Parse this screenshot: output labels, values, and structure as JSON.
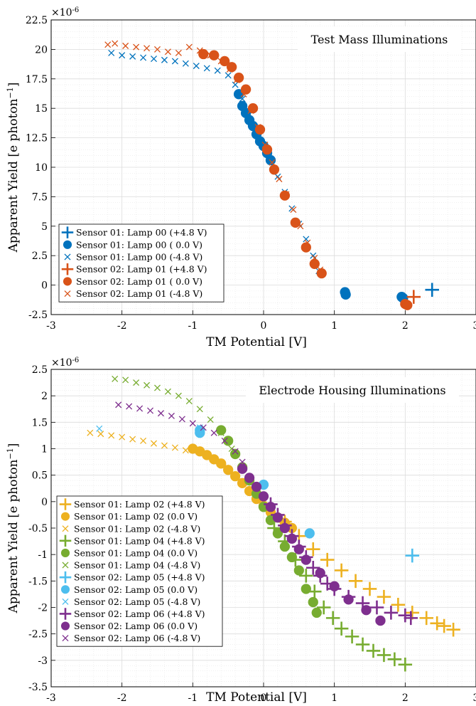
{
  "chart_data": [
    {
      "type": "scatter",
      "title": "Test Mass Illuminations",
      "xlabel": "TM Potential [V]",
      "ylabel": "Apparent Yield [e photon",
      "ylabel_sup": "−1",
      "ylabel_close": "]",
      "exponent_label": "×10",
      "exponent_sup": "-6",
      "xlim": [
        -3,
        3
      ],
      "ylim": [
        -2.5,
        22.5
      ],
      "xticks": [
        -3,
        -2,
        -1,
        0,
        1,
        2,
        3
      ],
      "xtick_labels": [
        "-3",
        "-2",
        "-1",
        "0",
        "1",
        "2",
        "3"
      ],
      "yticks": [
        -2.5,
        0,
        2.5,
        5,
        7.5,
        10,
        12.5,
        15,
        17.5,
        20,
        22.5
      ],
      "ytick_labels": [
        "-2.5",
        "0",
        "2.5",
        "5",
        "7.5",
        "10",
        "12.5",
        "15",
        "17.5",
        "20",
        "22.5"
      ],
      "grid": true,
      "legend_position": "bottom-left",
      "series": [
        {
          "name": "Sensor 01: Lamp 00 (+4.8 V)",
          "marker": "plus",
          "color": "#0072BD",
          "points": [
            [
              2.38,
              -0.4
            ]
          ]
        },
        {
          "name": "Sensor 01: Lamp 00 ( 0.0 V)",
          "marker": "circle",
          "color": "#0072BD",
          "points": [
            [
              -0.35,
              16.2
            ],
            [
              -0.3,
              15.2
            ],
            [
              -0.25,
              14.6
            ],
            [
              -0.2,
              14.0
            ],
            [
              -0.15,
              13.5
            ],
            [
              -0.1,
              12.8
            ],
            [
              -0.05,
              12.2
            ],
            [
              0.0,
              11.8
            ],
            [
              0.05,
              11.2
            ],
            [
              0.1,
              10.6
            ],
            [
              1.15,
              -0.6
            ],
            [
              1.16,
              -0.8
            ],
            [
              1.95,
              -1.0
            ],
            [
              1.97,
              -1.1
            ]
          ]
        },
        {
          "name": "Sensor 01: Lamp 00 (-4.8 V)",
          "marker": "x",
          "color": "#0072BD",
          "points": [
            [
              -2.15,
              19.7
            ],
            [
              -2.0,
              19.5
            ],
            [
              -1.85,
              19.4
            ],
            [
              -1.7,
              19.3
            ],
            [
              -1.55,
              19.2
            ],
            [
              -1.4,
              19.1
            ],
            [
              -1.25,
              19.0
            ],
            [
              -1.1,
              18.8
            ],
            [
              -0.95,
              18.6
            ],
            [
              -0.8,
              18.4
            ],
            [
              -0.65,
              18.2
            ],
            [
              -0.5,
              17.8
            ],
            [
              -0.4,
              17.0
            ],
            [
              -0.3,
              15.8
            ],
            [
              -0.2,
              14.5
            ],
            [
              -0.1,
              13.2
            ],
            [
              0.0,
              11.8
            ],
            [
              0.1,
              10.5
            ],
            [
              0.2,
              9.2
            ],
            [
              0.3,
              7.9
            ],
            [
              0.4,
              6.5
            ],
            [
              0.5,
              5.2
            ],
            [
              0.6,
              3.9
            ],
            [
              0.7,
              2.5
            ],
            [
              0.78,
              1.2
            ]
          ]
        },
        {
          "name": "Sensor 02: Lamp 01 (+4.8 V)",
          "marker": "plus",
          "color": "#D95319",
          "points": [
            [
              2.12,
              -1.0
            ]
          ]
        },
        {
          "name": "Sensor 02: Lamp 01 ( 0.0 V)",
          "marker": "circle",
          "color": "#D95319",
          "points": [
            [
              -0.85,
              19.6
            ],
            [
              -0.7,
              19.5
            ],
            [
              -0.55,
              19.0
            ],
            [
              -0.45,
              18.5
            ],
            [
              -0.35,
              17.6
            ],
            [
              -0.25,
              16.6
            ],
            [
              -0.15,
              15.0
            ],
            [
              -0.05,
              13.2
            ],
            [
              0.05,
              11.5
            ],
            [
              0.15,
              9.8
            ],
            [
              0.3,
              7.6
            ],
            [
              0.45,
              5.3
            ],
            [
              0.6,
              3.2
            ],
            [
              0.72,
              1.8
            ],
            [
              0.82,
              1.0
            ],
            [
              2.0,
              -1.6
            ],
            [
              2.03,
              -1.7
            ]
          ]
        },
        {
          "name": "Sensor 02: Lamp 01 (-4.8 V)",
          "marker": "x",
          "color": "#D95319",
          "points": [
            [
              -2.2,
              20.4
            ],
            [
              -2.1,
              20.5
            ],
            [
              -1.95,
              20.3
            ],
            [
              -1.8,
              20.2
            ],
            [
              -1.65,
              20.1
            ],
            [
              -1.5,
              20.0
            ],
            [
              -1.35,
              19.8
            ],
            [
              -1.2,
              19.7
            ],
            [
              -1.05,
              20.2
            ],
            [
              -0.9,
              19.9
            ],
            [
              -0.75,
              19.5
            ],
            [
              -0.6,
              19.0
            ],
            [
              -0.48,
              18.3
            ],
            [
              -0.38,
              17.4
            ],
            [
              -0.28,
              16.2
            ],
            [
              -0.18,
              14.8
            ],
            [
              -0.08,
              13.4
            ],
            [
              0.02,
              11.9
            ],
            [
              0.12,
              10.4
            ],
            [
              0.22,
              9.0
            ],
            [
              0.32,
              7.7
            ],
            [
              0.42,
              6.4
            ],
            [
              0.52,
              5.0
            ],
            [
              0.62,
              3.6
            ],
            [
              0.72,
              2.3
            ],
            [
              0.8,
              1.3
            ]
          ]
        }
      ]
    },
    {
      "type": "scatter",
      "title": "Electrode Housing Illuminations",
      "xlabel": "TM Potential [V]",
      "ylabel": "Apparent Yield [e photon",
      "ylabel_sup": "−1",
      "ylabel_close": "]",
      "exponent_label": "×10",
      "exponent_sup": "-6",
      "xlim": [
        -3,
        3
      ],
      "ylim": [
        -3.5,
        2.5
      ],
      "xticks": [
        -3,
        -2,
        -1,
        0,
        1,
        2,
        3
      ],
      "xtick_labels": [
        "-3",
        "-2",
        "-1",
        "0",
        "1",
        "2",
        "3"
      ],
      "yticks": [
        -3.5,
        -3,
        -2.5,
        -2,
        -1.5,
        -1,
        -0.5,
        0,
        0.5,
        1,
        1.5,
        2,
        2.5
      ],
      "ytick_labels": [
        "-3.5",
        "-3",
        "-2.5",
        "-2",
        "-1.5",
        "-1",
        "-0.5",
        "0",
        "0.5",
        "1",
        "1.5",
        "2",
        "2.5"
      ],
      "grid": true,
      "legend_position": "bottom-left",
      "series": [
        {
          "name": "Sensor 01: Lamp 02 (+4.8 V)",
          "marker": "plus",
          "color": "#EDB120",
          "points": [
            [
              0.3,
              -0.38
            ],
            [
              0.5,
              -0.65
            ],
            [
              0.7,
              -0.9
            ],
            [
              0.9,
              -1.1
            ],
            [
              1.1,
              -1.3
            ],
            [
              1.3,
              -1.5
            ],
            [
              1.5,
              -1.65
            ],
            [
              1.7,
              -1.8
            ],
            [
              1.9,
              -1.95
            ],
            [
              2.1,
              -2.1
            ],
            [
              2.3,
              -2.2
            ],
            [
              2.45,
              -2.3
            ],
            [
              2.55,
              -2.35
            ],
            [
              2.68,
              -2.42
            ]
          ]
        },
        {
          "name": "Sensor 01: Lamp 02 (0.0 V)",
          "marker": "circle",
          "color": "#EDB120",
          "points": [
            [
              -1.0,
              1.0
            ],
            [
              -0.9,
              0.95
            ],
            [
              -0.8,
              0.88
            ],
            [
              -0.7,
              0.8
            ],
            [
              -0.6,
              0.72
            ],
            [
              -0.5,
              0.6
            ],
            [
              -0.4,
              0.48
            ],
            [
              -0.3,
              0.35
            ],
            [
              -0.2,
              0.2
            ],
            [
              -0.1,
              0.05
            ],
            [
              0.0,
              -0.08
            ],
            [
              0.1,
              -0.2
            ],
            [
              0.2,
              -0.3
            ],
            [
              0.3,
              -0.4
            ],
            [
              0.4,
              -0.5
            ]
          ]
        },
        {
          "name": "Sensor 01: Lamp 02 (-4.8 V)",
          "marker": "x",
          "color": "#EDB120",
          "points": [
            [
              -2.45,
              1.3
            ],
            [
              -2.3,
              1.28
            ],
            [
              -2.15,
              1.25
            ],
            [
              -2.0,
              1.22
            ],
            [
              -1.85,
              1.18
            ],
            [
              -1.7,
              1.15
            ],
            [
              -1.55,
              1.1
            ],
            [
              -1.4,
              1.06
            ],
            [
              -1.25,
              1.02
            ],
            [
              -1.1,
              0.97
            ]
          ]
        },
        {
          "name": "Sensor 01: Lamp 04 (+4.8 V)",
          "marker": "plus",
          "color": "#77AC30",
          "points": [
            [
              0.15,
              -0.5
            ],
            [
              0.3,
              -0.75
            ],
            [
              0.45,
              -1.1
            ],
            [
              0.6,
              -1.4
            ],
            [
              0.72,
              -1.7
            ],
            [
              0.85,
              -2.0
            ],
            [
              0.98,
              -2.2
            ],
            [
              1.1,
              -2.4
            ],
            [
              1.25,
              -2.55
            ],
            [
              1.4,
              -2.7
            ],
            [
              1.55,
              -2.82
            ],
            [
              1.7,
              -2.9
            ],
            [
              1.85,
              -2.98
            ],
            [
              2.0,
              -3.08
            ]
          ]
        },
        {
          "name": "Sensor 01: Lamp 04 (0.0 V)",
          "marker": "circle",
          "color": "#77AC30",
          "points": [
            [
              -0.6,
              1.35
            ],
            [
              -0.5,
              1.15
            ],
            [
              -0.4,
              0.9
            ],
            [
              -0.3,
              0.65
            ],
            [
              -0.2,
              0.4
            ],
            [
              -0.1,
              0.15
            ],
            [
              0.0,
              -0.1
            ],
            [
              0.1,
              -0.35
            ],
            [
              0.2,
              -0.6
            ],
            [
              0.3,
              -0.85
            ],
            [
              0.4,
              -1.05
            ],
            [
              0.5,
              -1.3
            ],
            [
              0.6,
              -1.65
            ],
            [
              0.7,
              -1.9
            ],
            [
              0.75,
              -2.1
            ]
          ]
        },
        {
          "name": "Sensor 01: Lamp 04 (-4.8 V)",
          "marker": "x",
          "color": "#77AC30",
          "points": [
            [
              -2.1,
              2.32
            ],
            [
              -1.95,
              2.3
            ],
            [
              -1.8,
              2.25
            ],
            [
              -1.65,
              2.2
            ],
            [
              -1.5,
              2.15
            ],
            [
              -1.35,
              2.08
            ],
            [
              -1.2,
              2.0
            ],
            [
              -1.05,
              1.9
            ],
            [
              -0.9,
              1.75
            ],
            [
              -0.75,
              1.55
            ],
            [
              -0.6,
              1.3
            ],
            [
              -0.45,
              1.0
            ],
            [
              -0.3,
              0.65
            ]
          ]
        },
        {
          "name": "Sensor 02: Lamp 05 (+4.8 V)",
          "marker": "plus",
          "color": "#4DBEEE",
          "points": [
            [
              2.1,
              -1.02
            ]
          ]
        },
        {
          "name": "Sensor 02: Lamp 05 (0.0 V)",
          "marker": "circle",
          "color": "#4DBEEE",
          "points": [
            [
              -0.9,
              1.35
            ],
            [
              -0.9,
              1.3
            ],
            [
              0.0,
              0.32
            ],
            [
              0.65,
              -0.6
            ]
          ]
        },
        {
          "name": "Sensor 02: Lamp 05 (-4.8 V)",
          "marker": "x",
          "color": "#4DBEEE",
          "points": [
            [
              -2.32,
              1.38
            ],
            [
              -0.9,
              1.4
            ]
          ]
        },
        {
          "name": "Sensor 02: Lamp 06 (+4.8 V)",
          "marker": "plus",
          "color": "#7E2F8E",
          "points": [
            [
              0.1,
              -0.05
            ],
            [
              0.2,
              -0.25
            ],
            [
              0.3,
              -0.45
            ],
            [
              0.4,
              -0.65
            ],
            [
              0.5,
              -0.85
            ],
            [
              0.6,
              -1.05
            ],
            [
              0.7,
              -1.25
            ],
            [
              0.8,
              -1.4
            ],
            [
              0.9,
              -1.55
            ],
            [
              1.0,
              -1.65
            ],
            [
              1.2,
              -1.8
            ],
            [
              1.4,
              -1.92
            ],
            [
              1.6,
              -2.0
            ],
            [
              1.8,
              -2.1
            ],
            [
              2.0,
              -2.15
            ],
            [
              2.08,
              -2.2
            ]
          ]
        },
        {
          "name": "Sensor 02: Lamp 06 (0.0 V)",
          "marker": "circle",
          "color": "#7E2F8E",
          "points": [
            [
              -0.3,
              0.62
            ],
            [
              -0.2,
              0.45
            ],
            [
              -0.1,
              0.28
            ],
            [
              0.0,
              0.1
            ],
            [
              0.1,
              -0.1
            ],
            [
              0.2,
              -0.3
            ],
            [
              0.3,
              -0.5
            ],
            [
              0.4,
              -0.7
            ],
            [
              0.5,
              -0.9
            ],
            [
              0.6,
              -1.1
            ],
            [
              0.8,
              -1.35
            ],
            [
              1.0,
              -1.6
            ],
            [
              1.2,
              -1.85
            ],
            [
              1.45,
              -2.05
            ],
            [
              1.65,
              -2.25
            ]
          ]
        },
        {
          "name": "Sensor 02: Lamp 06 (-4.8 V)",
          "marker": "x",
          "color": "#7E2F8E",
          "points": [
            [
              -2.05,
              1.83
            ],
            [
              -1.9,
              1.8
            ],
            [
              -1.75,
              1.76
            ],
            [
              -1.6,
              1.72
            ],
            [
              -1.45,
              1.67
            ],
            [
              -1.3,
              1.62
            ],
            [
              -1.15,
              1.56
            ],
            [
              -1.0,
              1.48
            ],
            [
              -0.85,
              1.4
            ],
            [
              -0.7,
              1.3
            ],
            [
              -0.55,
              1.15
            ],
            [
              -0.4,
              0.95
            ],
            [
              -0.3,
              0.75
            ]
          ]
        }
      ]
    }
  ]
}
